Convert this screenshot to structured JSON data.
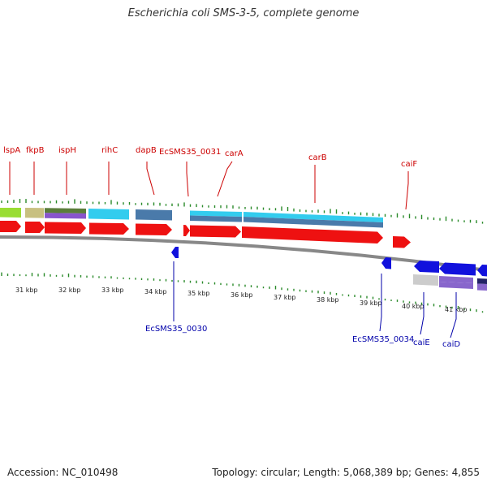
{
  "title": "Escherichia coli SMS-3-5, complete genome",
  "footer": {
    "accession": "Accession: NC_010498",
    "summary": "Topology: circular; Length: 5,068,389 bp; Genes: 4,855"
  },
  "colors": {
    "forward_cds": "#ee1111",
    "reverse_cds": "#1111dd",
    "top_label": "#cc0000",
    "bottom_label": "#0000aa",
    "backbone": "#888888",
    "gc_tick": "#2a8a2a"
  },
  "kbp_labels": [
    "31 kbp",
    "32 kbp",
    "33 kbp",
    "34 kbp",
    "35 kbp",
    "36 kbp",
    "37 kbp",
    "38 kbp",
    "39 kbp",
    "40 kbp",
    "41 kbp"
  ],
  "top_genes": [
    "lspA",
    "fkpB",
    "ispH",
    "rihC",
    "dapB",
    "EcSMS35_0031",
    "carA",
    "carB",
    "caiF"
  ],
  "bottom_genes": [
    "EcSMS35_0030",
    "EcSMS35_0034",
    "caiE",
    "caiD"
  ]
}
